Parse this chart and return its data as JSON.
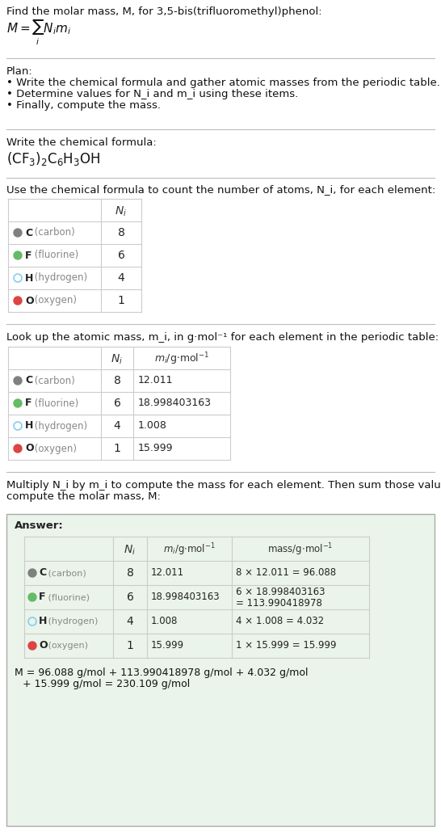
{
  "title_line": "Find the molar mass, M, for 3,5-bis(trifluoromethyl)phenol:",
  "formula_display": "M = Σ N_i m_i",
  "bg_color": "#ffffff",
  "section_bg": "#f7f7f7",
  "table_border_color": "#cccccc",
  "elements": [
    "C (carbon)",
    "F (fluorine)",
    "H (hydrogen)",
    "O (oxygen)"
  ],
  "element_symbols": [
    "C",
    "F",
    "H",
    "O"
  ],
  "element_colors": [
    "#808080",
    "#66bb66",
    "#88ccee",
    "#dd4444"
  ],
  "element_filled": [
    true,
    true,
    false,
    true
  ],
  "Ni": [
    8,
    6,
    4,
    1
  ],
  "mi": [
    "12.011",
    "18.998403163",
    "1.008",
    "15.999"
  ],
  "mass_exprs": [
    "8 × 12.011 = 96.088",
    "6 × 18.998403163\n= 113.990418978",
    "4 × 1.008 = 4.032",
    "1 × 15.999 = 15.999"
  ],
  "plan_text": "Plan:\n• Write the chemical formula and gather atomic masses from the periodic table.\n• Determine values for N_i and m_i using these items.\n• Finally, compute the mass.",
  "chem_formula_label": "Write the chemical formula:",
  "chem_formula": "(CF₃)₂C₆H₃OH",
  "count_label": "Use the chemical formula to count the number of atoms, N_i, for each element:",
  "lookup_label": "Look up the atomic mass, m_i, in g·mol⁻¹ for each element in the periodic table:",
  "multiply_label": "Multiply N_i by m_i to compute the mass for each element. Then sum those values to\ncompute the molar mass, M:",
  "answer_label": "Answer:",
  "final_eq": "M = 96.088 g/mol + 113.990418978 g/mol + 4.032 g/mol + 15.999 g/mol = 230.109 g/mol",
  "answer_box_color": "#e8f4e8",
  "answer_box_border": "#aaaaaa"
}
